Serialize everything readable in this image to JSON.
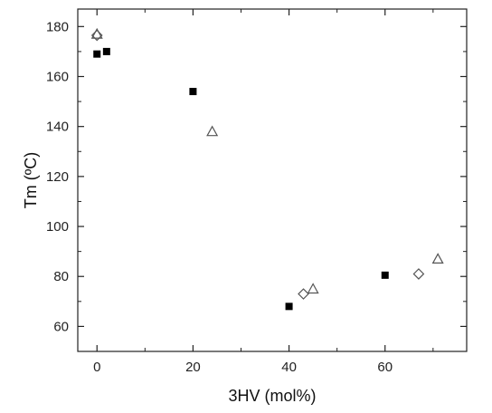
{
  "chart_data": {
    "type": "scatter",
    "title": "",
    "xlabel": "3HV (mol%)",
    "ylabel": "Tm (ºC)",
    "xlim": [
      -4,
      77
    ],
    "ylim": [
      50,
      187
    ],
    "x_ticks": [
      0,
      20,
      40,
      60
    ],
    "x_tick_labels": [
      "0",
      "20",
      "40",
      "60"
    ],
    "y_ticks": [
      60,
      80,
      100,
      120,
      140,
      160,
      180
    ],
    "y_tick_labels": [
      "60",
      "80",
      "100",
      "120",
      "140",
      "160",
      "180"
    ],
    "grid": false,
    "legend": "none",
    "series": [
      {
        "marker": "filled-square",
        "color": "#000000",
        "points": [
          {
            "x": 0,
            "y": 169
          },
          {
            "x": 2,
            "y": 170
          },
          {
            "x": 20,
            "y": 154
          },
          {
            "x": 40,
            "y": 68
          },
          {
            "x": 60,
            "y": 80.5
          }
        ]
      },
      {
        "marker": "open-triangle",
        "color": "#555555",
        "points": [
          {
            "x": 0,
            "y": 177
          },
          {
            "x": 24,
            "y": 138
          },
          {
            "x": 45,
            "y": 75
          },
          {
            "x": 71,
            "y": 87
          }
        ]
      },
      {
        "marker": "open-diamond",
        "color": "#555555",
        "points": [
          {
            "x": 0,
            "y": 176.5
          },
          {
            "x": 43,
            "y": 73
          },
          {
            "x": 67,
            "y": 81
          }
        ]
      }
    ]
  }
}
